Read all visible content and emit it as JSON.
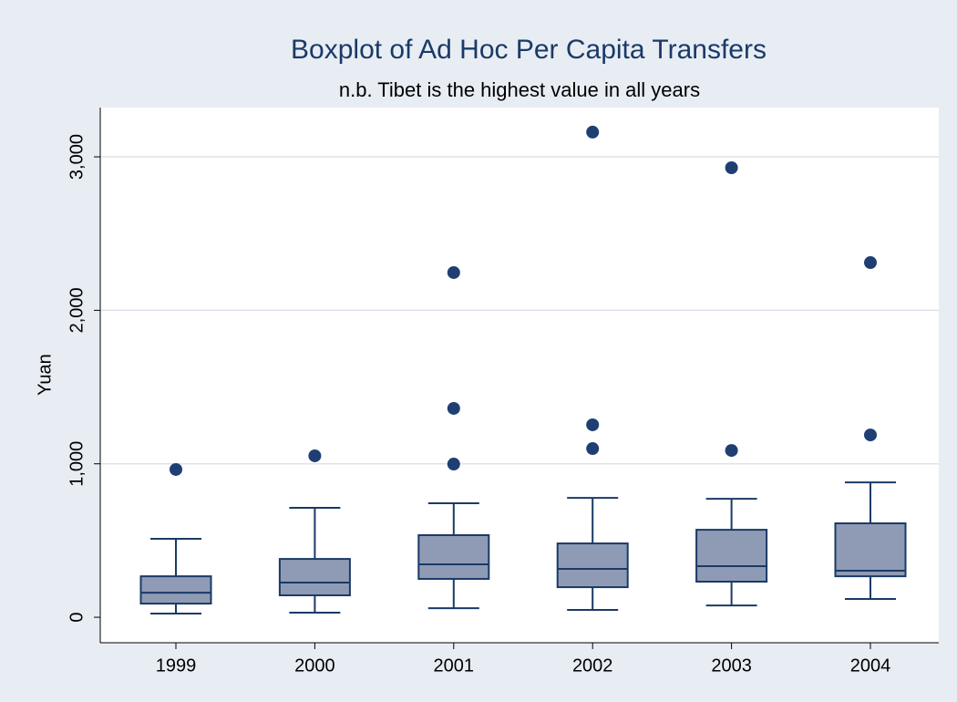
{
  "chart_data": {
    "type": "box",
    "title": "Boxplot of Ad Hoc Per Capita Transfers",
    "subtitle": "n.b. Tibet is the highest value in all years",
    "ylabel": "Yuan",
    "categories": [
      "1999",
      "2000",
      "2001",
      "2002",
      "2003",
      "2004"
    ],
    "boxes": [
      {
        "min": 24,
        "q1": 89,
        "median": 160,
        "q3": 267,
        "max": 511,
        "outliers": [
          963
        ]
      },
      {
        "min": 30,
        "q1": 143,
        "median": 226,
        "q3": 380,
        "max": 713,
        "outliers": [
          1052
        ]
      },
      {
        "min": 59,
        "q1": 250,
        "median": 345,
        "q3": 535,
        "max": 743,
        "outliers": [
          998,
          1361,
          2246
        ]
      },
      {
        "min": 48,
        "q1": 196,
        "median": 315,
        "q3": 481,
        "max": 778,
        "outliers": [
          1099,
          1254,
          3161
        ]
      },
      {
        "min": 77,
        "q1": 232,
        "median": 333,
        "q3": 570,
        "max": 772,
        "outliers": [
          1087,
          2929
        ]
      },
      {
        "min": 119,
        "q1": 267,
        "median": 303,
        "q3": 612,
        "max": 879,
        "outliers": [
          1188,
          2311
        ]
      }
    ],
    "box_color": "#8f9bb5",
    "line_color": "#1a3a66",
    "outlier_color": "#1f3f73",
    "ylim": [
      -166,
      3321
    ],
    "yticks": [
      0,
      {
        "value": 1000,
        "label": "1,000"
      },
      {
        "value": 2000,
        "label": "2,000"
      },
      {
        "value": 3000,
        "label": "3,000"
      }
    ],
    "grid": true
  }
}
